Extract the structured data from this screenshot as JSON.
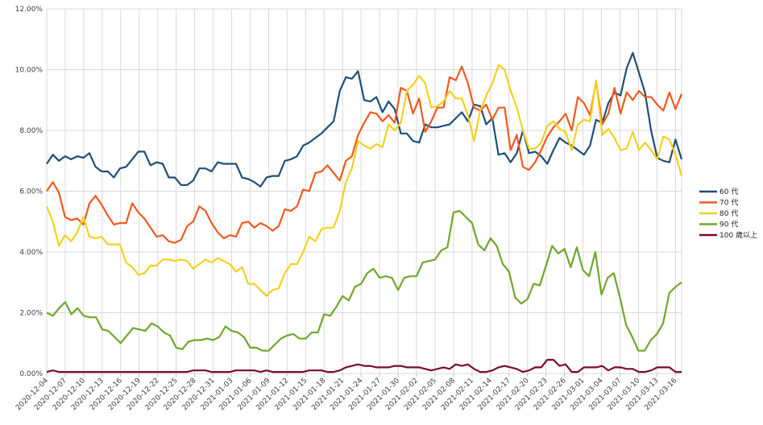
{
  "chart_data": {
    "type": "line",
    "title": "",
    "xlabel": "",
    "ylabel": "",
    "ylim": [
      0,
      12
    ],
    "y_ticks": [
      "0.00%",
      "2.00%",
      "4.00%",
      "6.00%",
      "8.00%",
      "10.00%",
      "12.00%"
    ],
    "x_start": "2020-12-04",
    "x_end": "2021-03-17",
    "x_tick_labels": [
      "2020-12-04",
      "2020-12-07",
      "2020-12-10",
      "2020-12-13",
      "2020-12-16",
      "2020-12-19",
      "2020-12-22",
      "2020-12-25",
      "2020-12-28",
      "2020-12-31",
      "2021-01-03",
      "2021-01-06",
      "2021-01-09",
      "2021-01-12",
      "2021-01-15",
      "2021-01-18",
      "2021-01-21",
      "2021-01-24",
      "2021-01-27",
      "2021-01-30",
      "2021-02-02",
      "2021-02-05",
      "2021-02-08",
      "2021-02-11",
      "2021-02-14",
      "2021-02-17",
      "2021-02-20",
      "2021-02-23",
      "2021-02-26",
      "2021-03-01",
      "2021-03-04",
      "2021-03-07",
      "2021-03-10",
      "2021-03-13",
      "2021-03-16"
    ],
    "grid": true,
    "legend_position": "right",
    "series": [
      {
        "name": "60 代",
        "color": "#1f4e79",
        "values": [
          6.9,
          7.2,
          7.0,
          7.15,
          7.05,
          7.15,
          7.1,
          7.25,
          6.8,
          6.65,
          6.65,
          6.45,
          6.75,
          6.8,
          7.05,
          7.3,
          7.3,
          6.85,
          6.95,
          6.9,
          6.45,
          6.45,
          6.2,
          6.2,
          6.35,
          6.75,
          6.75,
          6.65,
          6.95,
          6.9,
          6.9,
          6.9,
          6.45,
          6.4,
          6.3,
          6.15,
          6.45,
          6.5,
          6.5,
          7.0,
          7.05,
          7.15,
          7.5,
          7.6,
          7.75,
          7.9,
          8.1,
          8.3,
          9.3,
          9.75,
          9.7,
          9.95,
          9.0,
          8.95,
          9.1,
          8.6,
          8.95,
          8.7,
          7.9,
          7.9,
          7.65,
          7.6,
          8.2,
          8.1,
          8.1,
          8.15,
          8.2,
          8.4,
          8.6,
          8.3,
          8.85,
          8.8,
          8.2,
          8.4,
          7.2,
          7.25,
          6.95,
          7.25,
          8.0,
          7.25,
          7.3,
          7.15,
          6.9,
          7.35,
          7.75,
          7.6,
          7.5,
          7.35,
          7.2,
          7.5,
          8.35,
          8.25,
          8.9,
          9.25,
          9.15,
          10.05,
          10.55,
          9.9,
          9.25,
          8.0,
          7.1,
          7.0,
          6.95,
          7.7,
          7.05
        ]
      },
      {
        "name": "70 代",
        "color": "#f05a1e",
        "values": [
          6.0,
          6.3,
          5.95,
          5.15,
          5.05,
          5.1,
          4.9,
          5.6,
          5.85,
          5.55,
          5.2,
          4.9,
          4.95,
          4.95,
          5.6,
          5.3,
          5.1,
          4.8,
          4.5,
          4.55,
          4.35,
          4.3,
          4.4,
          4.85,
          5.0,
          5.5,
          5.35,
          4.95,
          4.65,
          4.45,
          4.55,
          4.5,
          4.95,
          5.0,
          4.8,
          4.95,
          4.85,
          4.7,
          4.85,
          5.4,
          5.35,
          5.5,
          6.05,
          6.0,
          6.6,
          6.65,
          6.85,
          6.6,
          6.35,
          7.0,
          7.15,
          7.85,
          8.25,
          8.6,
          8.55,
          8.3,
          8.5,
          8.25,
          9.4,
          9.3,
          8.55,
          9.05,
          7.95,
          8.3,
          8.75,
          8.75,
          9.75,
          9.65,
          10.1,
          9.55,
          8.75,
          8.65,
          8.85,
          8.35,
          8.75,
          8.75,
          7.35,
          7.85,
          6.8,
          6.7,
          6.95,
          7.35,
          7.8,
          8.1,
          8.3,
          8.55,
          8.0,
          9.1,
          8.9,
          8.5,
          9.6,
          8.2,
          8.55,
          9.4,
          8.55,
          9.25,
          9.0,
          9.3,
          9.1,
          9.1,
          8.85,
          8.65,
          9.25,
          8.7,
          9.2
        ]
      },
      {
        "name": "80 代",
        "color": "#f5d020",
        "values": [
          5.5,
          5.0,
          4.2,
          4.55,
          4.35,
          4.65,
          5.15,
          4.5,
          4.45,
          4.5,
          4.25,
          4.25,
          4.25,
          3.65,
          3.5,
          3.25,
          3.3,
          3.55,
          3.55,
          3.75,
          3.75,
          3.7,
          3.75,
          3.7,
          3.45,
          3.6,
          3.75,
          3.65,
          3.8,
          3.7,
          3.6,
          3.35,
          3.5,
          2.95,
          2.95,
          2.75,
          2.55,
          2.75,
          2.8,
          3.3,
          3.6,
          3.6,
          4.0,
          4.5,
          4.35,
          4.75,
          4.8,
          4.8,
          5.35,
          6.3,
          6.75,
          7.65,
          7.5,
          7.4,
          7.55,
          7.45,
          8.2,
          8.0,
          8.25,
          9.3,
          9.5,
          9.8,
          9.55,
          8.75,
          8.8,
          8.95,
          9.3,
          9.05,
          9.05,
          8.5,
          7.65,
          8.65,
          9.15,
          9.55,
          10.15,
          10.0,
          9.3,
          8.75,
          8.0,
          7.4,
          7.4,
          7.6,
          8.15,
          8.3,
          8.05,
          7.95,
          7.35,
          8.2,
          8.35,
          8.3,
          9.65,
          7.85,
          8.05,
          7.75,
          7.35,
          7.4,
          7.95,
          7.35,
          7.6,
          7.35,
          7.05,
          7.8,
          7.7,
          7.2,
          6.5
        ]
      },
      {
        "name": "90 代",
        "color": "#6ea82c",
        "values": [
          2.0,
          1.9,
          2.15,
          2.35,
          1.95,
          2.15,
          1.9,
          1.85,
          1.85,
          1.45,
          1.4,
          1.2,
          1.0,
          1.25,
          1.5,
          1.45,
          1.4,
          1.65,
          1.55,
          1.35,
          1.25,
          0.85,
          0.8,
          1.05,
          1.1,
          1.1,
          1.15,
          1.1,
          1.2,
          1.55,
          1.4,
          1.35,
          1.2,
          0.85,
          0.85,
          0.75,
          0.75,
          0.95,
          1.15,
          1.25,
          1.3,
          1.15,
          1.15,
          1.35,
          1.35,
          1.95,
          1.9,
          2.2,
          2.55,
          2.4,
          2.85,
          2.95,
          3.3,
          3.45,
          3.15,
          3.2,
          3.15,
          2.75,
          3.15,
          3.2,
          3.2,
          3.65,
          3.7,
          3.75,
          4.05,
          4.15,
          5.3,
          5.35,
          5.15,
          4.95,
          4.25,
          4.05,
          4.45,
          4.2,
          3.6,
          3.35,
          2.5,
          2.3,
          2.45,
          2.95,
          2.9,
          3.55,
          4.2,
          3.95,
          4.1,
          3.5,
          4.15,
          3.4,
          3.2,
          4.0,
          2.6,
          3.15,
          3.3,
          2.5,
          1.6,
          1.2,
          0.75,
          0.75,
          1.1,
          1.3,
          1.65,
          2.65,
          2.85,
          3.0
        ]
      },
      {
        "name": "100 歳以上",
        "color": "#7b0a2e",
        "values": [
          0.05,
          0.1,
          0.05,
          0.05,
          0.05,
          0.05,
          0.05,
          0.05,
          0.05,
          0.05,
          0.05,
          0.05,
          0.05,
          0.05,
          0.05,
          0.05,
          0.05,
          0.05,
          0.05,
          0.05,
          0.05,
          0.05,
          0.05,
          0.05,
          0.1,
          0.1,
          0.1,
          0.05,
          0.05,
          0.05,
          0.05,
          0.1,
          0.1,
          0.1,
          0.1,
          0.05,
          0.1,
          0.05,
          0.05,
          0.05,
          0.05,
          0.05,
          0.05,
          0.1,
          0.1,
          0.1,
          0.05,
          0.05,
          0.1,
          0.2,
          0.25,
          0.3,
          0.25,
          0.25,
          0.2,
          0.2,
          0.2,
          0.25,
          0.25,
          0.2,
          0.2,
          0.2,
          0.15,
          0.1,
          0.15,
          0.2,
          0.15,
          0.3,
          0.25,
          0.3,
          0.15,
          0.05,
          0.05,
          0.1,
          0.2,
          0.25,
          0.2,
          0.15,
          0.05,
          0.1,
          0.2,
          0.2,
          0.45,
          0.45,
          0.25,
          0.3,
          0.05,
          0.05,
          0.2,
          0.2,
          0.2,
          0.25,
          0.1,
          0.2,
          0.2,
          0.15,
          0.15,
          0.05,
          0.05,
          0.1,
          0.2,
          0.2,
          0.2,
          0.05,
          0.05
        ]
      }
    ]
  }
}
